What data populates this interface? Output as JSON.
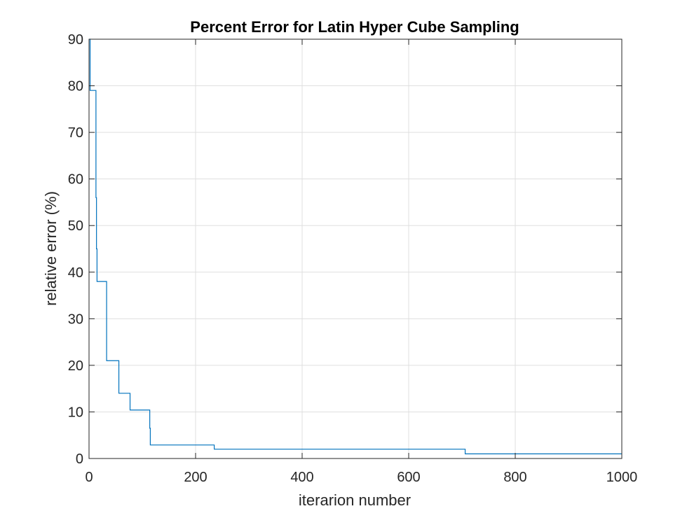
{
  "chart_data": {
    "type": "line",
    "title": "Percent Error for Latin Hyper Cube Sampling",
    "xlabel": "iterarion number",
    "ylabel": "relative error (%)",
    "xlim": [
      0,
      1000
    ],
    "ylim": [
      0,
      90
    ],
    "xticks": [
      0,
      200,
      400,
      600,
      800,
      1000
    ],
    "yticks": [
      0,
      10,
      20,
      30,
      40,
      50,
      60,
      70,
      80,
      90
    ],
    "xtick_labels": [
      "0",
      "200",
      "400",
      "600",
      "800",
      "1000"
    ],
    "ytick_labels": [
      "0",
      "10",
      "20",
      "30",
      "40",
      "50",
      "60",
      "70",
      "80",
      "90"
    ],
    "grid": true,
    "box": true,
    "line_color": "#0072bd",
    "series": [
      {
        "step": "post",
        "x": [
          1,
          2,
          12,
          13,
          14,
          15,
          32,
          33,
          55,
          56,
          76,
          77,
          113,
          114,
          115,
          234,
          235,
          705,
          706,
          1000
        ],
        "y": [
          90,
          79,
          79,
          56,
          45,
          38,
          38,
          21,
          21,
          14,
          14,
          10.4,
          10.4,
          6.5,
          2.9,
          2.9,
          2.0,
          2.0,
          1.0,
          1.0
        ]
      }
    ]
  }
}
